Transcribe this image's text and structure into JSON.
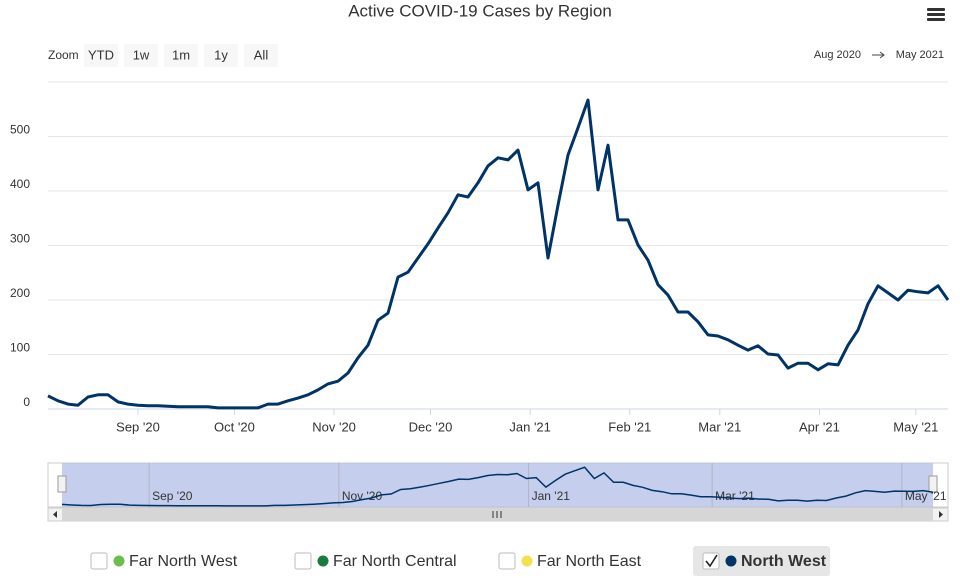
{
  "chart_data": {
    "type": "line",
    "title": "Active COVID-19 Cases by Region",
    "range_selector": {
      "label": "Zoom",
      "buttons": [
        "YTD",
        "1w",
        "1m",
        "1y",
        "All"
      ],
      "disabled": [
        "1y",
        "All"
      ],
      "from": "Aug 2020",
      "to": "May 2021"
    },
    "xlim": [
      "2020-08-04",
      "2021-05-11"
    ],
    "xticks": [
      {
        "value": "2020-09-01",
        "label": "Sep '20"
      },
      {
        "value": "2020-10-01",
        "label": "Oct '20"
      },
      {
        "value": "2020-11-01",
        "label": "Nov '20"
      },
      {
        "value": "2020-12-01",
        "label": "Dec '20"
      },
      {
        "value": "2021-01-01",
        "label": "Jan '21"
      },
      {
        "value": "2021-02-01",
        "label": "Feb '21"
      },
      {
        "value": "2021-03-01",
        "label": "Mar '21"
      },
      {
        "value": "2021-04-01",
        "label": "Apr '21"
      },
      {
        "value": "2021-05-01",
        "label": "May '21"
      }
    ],
    "ylim": [
      0,
      600
    ],
    "yticks": [
      0,
      100,
      200,
      300,
      400,
      500
    ],
    "grid": true,
    "series": [
      {
        "name": "Far North West",
        "color": "#6abf4b",
        "visible": false
      },
      {
        "name": "Far North Central",
        "color": "#1b7a3e",
        "visible": false
      },
      {
        "name": "Far North East",
        "color": "#f2e14c",
        "visible": false
      },
      {
        "name": "North West",
        "color": "#003366",
        "visible": true,
        "values": [
          24,
          15,
          9,
          7,
          22,
          26,
          26,
          13,
          9,
          7,
          6,
          6,
          5,
          4,
          4,
          4,
          4,
          2,
          2,
          2,
          2,
          2,
          9,
          9,
          15,
          20,
          26,
          35,
          46,
          51,
          66,
          94,
          117,
          163,
          176,
          242,
          251,
          277,
          303,
          332,
          360,
          393,
          389,
          415,
          446,
          461,
          457,
          475,
          402,
          415,
          277,
          374,
          466,
          516,
          567,
          402,
          484,
          347,
          347,
          301,
          273,
          228,
          209,
          178,
          178,
          160,
          136,
          134,
          127,
          117,
          108,
          116,
          101,
          99,
          75,
          84,
          84,
          72,
          83,
          81,
          117,
          145,
          193,
          226,
          213,
          200,
          218,
          215,
          213,
          226,
          200
        ]
      }
    ]
  }
}
